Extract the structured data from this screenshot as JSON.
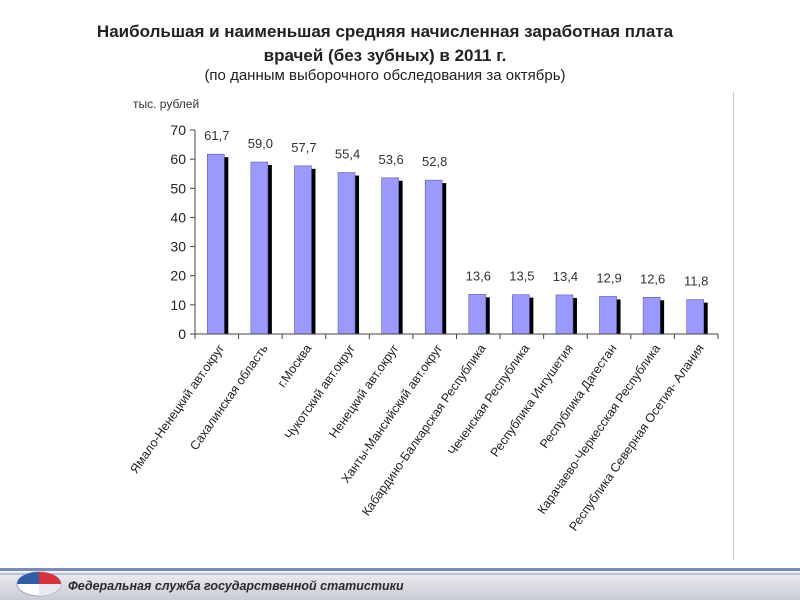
{
  "slide": {
    "title_line1": "Наибольшая и наименьшая средняя начисленная заработная плата",
    "title_line2": "врачей (без зубных) в 2011 г.",
    "subtitle": "(по данным выборочного обследования за октябрь)"
  },
  "footer": {
    "text": "Федеральная служба государственной статистики"
  },
  "colors": {
    "bar": "#9999ff",
    "bar_shadow": "#000000",
    "axis": "#444444"
  },
  "chart_data": {
    "type": "bar",
    "title": "",
    "ylabel": "тыс. рублей",
    "xlabel": "",
    "ylim": [
      0,
      70
    ],
    "yticks": [
      0,
      10,
      20,
      30,
      40,
      50,
      60,
      70
    ],
    "grid": false,
    "categories": [
      "Ямало-Ненецкий авт.округ",
      "Сахалинская область",
      "г.Москва",
      "Чукотский авт.округ",
      "Ненецкий авт.округ",
      "Ханты-Мансийский авт.округ",
      "Кабардино-Балкарская Республика",
      "Чеченская Республика",
      "Республика Ингушетия",
      "Республика Дагестан",
      "Карачаево-Черкесская Республика",
      "Республика Северная Осетия- Алания"
    ],
    "values": [
      61.7,
      59.0,
      57.7,
      55.4,
      53.6,
      52.8,
      13.6,
      13.5,
      13.4,
      12.9,
      12.6,
      11.8
    ],
    "value_labels": [
      "61,7",
      "59,0",
      "57,7",
      "55,4",
      "53,6",
      "52,8",
      "13,6",
      "13,5",
      "13,4",
      "12,9",
      "12,6",
      "11,8"
    ]
  }
}
